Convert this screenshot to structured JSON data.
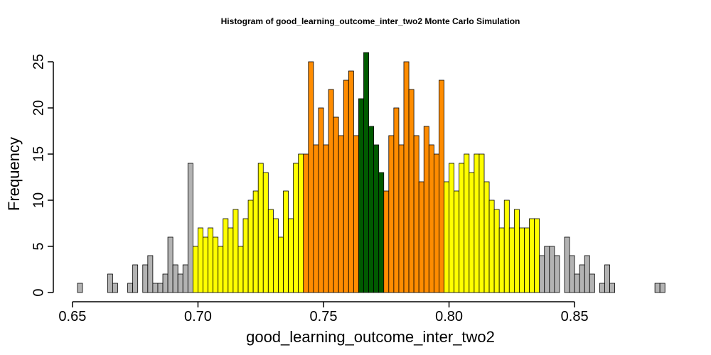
{
  "chart_data": {
    "type": "histogram",
    "title": "Histogram of  good_learning_outcome_inter_two2  Monte Carlo Simulation",
    "x_label": "good_learning_outcome_inter_two2",
    "y_label": "Frequency",
    "bins": [
      0.652,
      0.654,
      0.656,
      0.658,
      0.66,
      0.662,
      0.664,
      0.666,
      0.668,
      0.67,
      0.672,
      0.674,
      0.676,
      0.678,
      0.68,
      0.682,
      0.684,
      0.686,
      0.688,
      0.69,
      0.692,
      0.694,
      0.696,
      0.698,
      0.7,
      0.702,
      0.704,
      0.706,
      0.708,
      0.71,
      0.712,
      0.714,
      0.716,
      0.718,
      0.72,
      0.722,
      0.724,
      0.726,
      0.728,
      0.73,
      0.732,
      0.734,
      0.736,
      0.738,
      0.74,
      0.742,
      0.744,
      0.746,
      0.748,
      0.75,
      0.752,
      0.754,
      0.756,
      0.758,
      0.76,
      0.762,
      0.764,
      0.766,
      0.768,
      0.77,
      0.772,
      0.774,
      0.776,
      0.778,
      0.78,
      0.782,
      0.784,
      0.786,
      0.788,
      0.79,
      0.792,
      0.794,
      0.796,
      0.798,
      0.8,
      0.802,
      0.804,
      0.806,
      0.808,
      0.81,
      0.812,
      0.814,
      0.816,
      0.818,
      0.82,
      0.822,
      0.824,
      0.826,
      0.828,
      0.83,
      0.832,
      0.834,
      0.836,
      0.838,
      0.84,
      0.842,
      0.844,
      0.846,
      0.848,
      0.85,
      0.852,
      0.854,
      0.856,
      0.858,
      0.86,
      0.862,
      0.864,
      0.866,
      0.868,
      0.87,
      0.872,
      0.874,
      0.876,
      0.878,
      0.88,
      0.882,
      0.884,
      0.886
    ],
    "values": [
      1,
      0,
      0,
      0,
      0,
      0,
      2,
      1,
      0,
      0,
      1,
      3,
      0,
      3,
      4,
      1,
      1,
      2,
      6,
      3,
      2,
      3,
      14,
      5,
      7,
      6,
      7,
      6,
      5,
      8,
      7,
      9,
      5,
      8,
      10,
      11,
      14,
      13,
      9,
      8,
      6,
      11,
      8,
      14,
      15,
      15,
      25,
      16,
      20,
      16,
      22,
      19,
      17,
      23,
      24,
      17,
      21,
      26,
      18,
      16,
      13,
      11,
      17,
      20,
      16,
      25,
      22,
      17,
      12,
      18,
      16,
      15,
      23,
      12,
      14,
      11,
      14,
      15,
      13,
      15,
      15,
      12,
      10,
      9,
      7,
      10,
      7,
      9,
      7,
      7,
      8,
      8,
      4,
      5,
      5,
      4,
      0,
      6,
      4,
      2,
      3,
      4,
      2,
      0,
      1,
      3,
      1,
      0,
      0,
      0,
      0,
      0,
      0,
      0,
      0,
      1,
      1
    ],
    "colors": [
      "#b3b3b3",
      "#b3b3b3",
      "#b3b3b3",
      "#b3b3b3",
      "#b3b3b3",
      "#b3b3b3",
      "#b3b3b3",
      "#b3b3b3",
      "#b3b3b3",
      "#b3b3b3",
      "#b3b3b3",
      "#b3b3b3",
      "#b3b3b3",
      "#b3b3b3",
      "#b3b3b3",
      "#b3b3b3",
      "#b3b3b3",
      "#b3b3b3",
      "#b3b3b3",
      "#b3b3b3",
      "#b3b3b3",
      "#b3b3b3",
      "#b3b3b3",
      "#ffff00",
      "#ffff00",
      "#ffff00",
      "#ffff00",
      "#ffff00",
      "#ffff00",
      "#ffff00",
      "#ffff00",
      "#ffff00",
      "#ffff00",
      "#ffff00",
      "#ffff00",
      "#ffff00",
      "#ffff00",
      "#ffff00",
      "#ffff00",
      "#ffff00",
      "#ffff00",
      "#ffff00",
      "#ffff00",
      "#ffff00",
      "#ffff00",
      "#ff8c00",
      "#ff8c00",
      "#ff8c00",
      "#ff8c00",
      "#ff8c00",
      "#ff8c00",
      "#ff8c00",
      "#ff8c00",
      "#ff8c00",
      "#ff8c00",
      "#ff8c00",
      "#005a00",
      "#005a00",
      "#005a00",
      "#005a00",
      "#005a00",
      "#ff8c00",
      "#ff8c00",
      "#ff8c00",
      "#ff8c00",
      "#ff8c00",
      "#ff8c00",
      "#ff8c00",
      "#ff8c00",
      "#ff8c00",
      "#ff8c00",
      "#ff8c00",
      "#ff8c00",
      "#ffff00",
      "#ffff00",
      "#ffff00",
      "#ffff00",
      "#ffff00",
      "#ffff00",
      "#ffff00",
      "#ffff00",
      "#ffff00",
      "#ffff00",
      "#ffff00",
      "#ffff00",
      "#ffff00",
      "#ffff00",
      "#ffff00",
      "#ffff00",
      "#ffff00",
      "#ffff00",
      "#ffff00",
      "#b3b3b3",
      "#b3b3b3",
      "#b3b3b3",
      "#b3b3b3",
      "#b3b3b3",
      "#b3b3b3",
      "#b3b3b3",
      "#b3b3b3",
      "#b3b3b3",
      "#b3b3b3",
      "#b3b3b3",
      "#b3b3b3",
      "#b3b3b3",
      "#b3b3b3",
      "#b3b3b3",
      "#b3b3b3",
      "#b3b3b3",
      "#b3b3b3",
      "#b3b3b3",
      "#b3b3b3",
      "#b3b3b3",
      "#b3b3b3",
      "#b3b3b3",
      "#b3b3b3",
      "#b3b3b3"
    ],
    "xlim": [
      0.6438,
      0.8882
    ],
    "xticks": [
      0.65,
      {
        "value": 0.7,
        "label": "0.70"
      },
      0.75,
      {
        "value": 0.8,
        "label": "0.80"
      },
      0.85
    ],
    "ylim": [
      0,
      27
    ],
    "yticks": [
      0,
      5,
      10,
      15,
      20,
      25
    ]
  }
}
